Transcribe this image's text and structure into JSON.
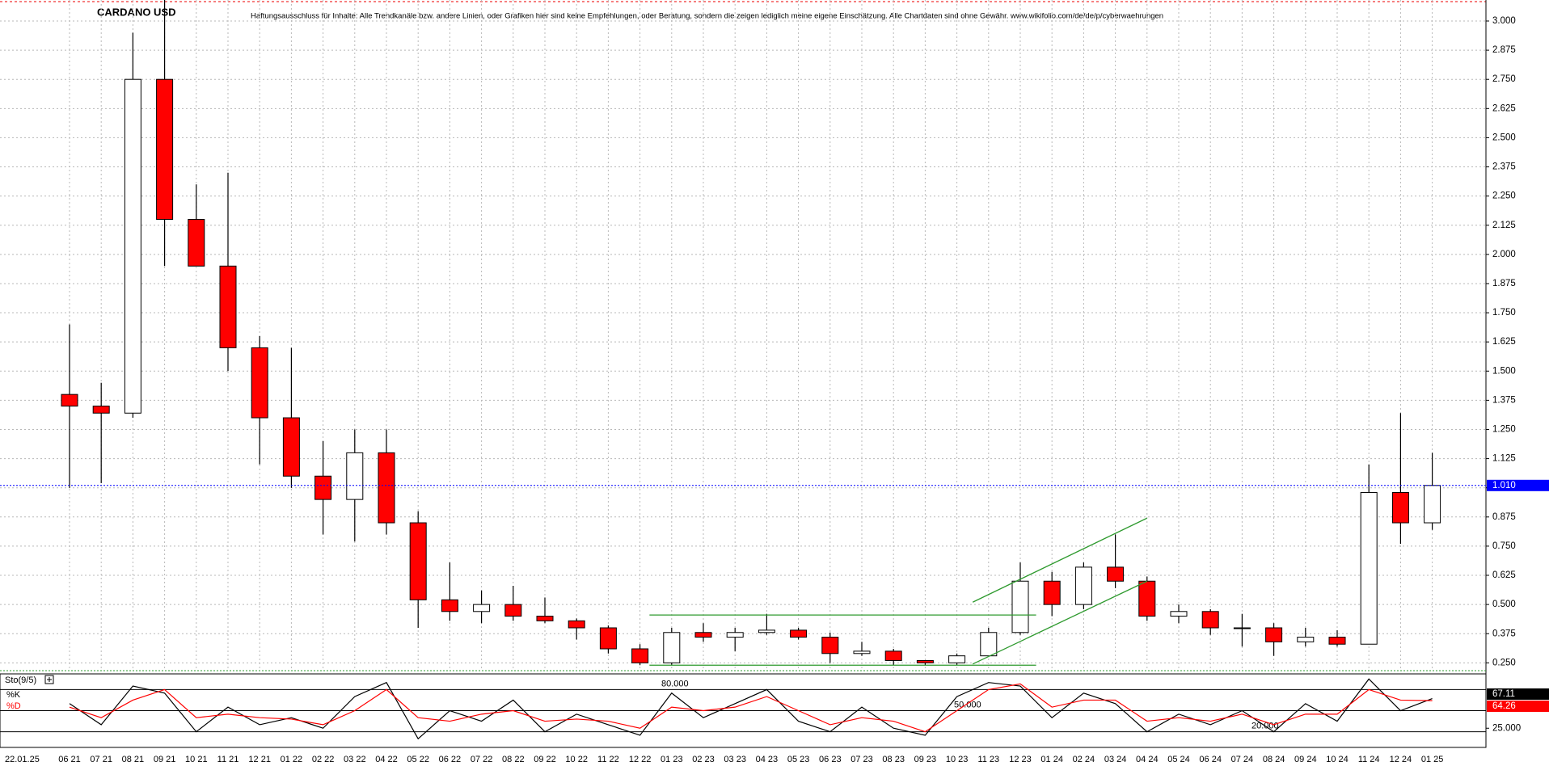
{
  "chart_data": {
    "type": "candlestick",
    "title": "CARDANO USD",
    "subtitle": "Haftungsausschluss für Inhalte: Alle Trendkanäle bzw. andere Linien, oder Grafiken hier sind keine Empfehlungen, oder Beratung, sondern die zeigen lediglich meine eigene Einschätzung. Alle Chartdaten sind ohne Gewähr.  www.wikifolio.com/de/de/p/cyberwaehrungen",
    "cursor_date": "22.01.25",
    "categories": [
      "06 21",
      "07 21",
      "08 21",
      "09 21",
      "10 21",
      "11 21",
      "12 21",
      "01 22",
      "02 22",
      "03 22",
      "04 22",
      "05 22",
      "06 22",
      "07 22",
      "08 22",
      "09 22",
      "10 22",
      "11 22",
      "12 22",
      "01 23",
      "02 23",
      "03 23",
      "04 23",
      "05 23",
      "06 23",
      "07 23",
      "08 23",
      "09 23",
      "10 23",
      "11 23",
      "12 23",
      "01 24",
      "02 24",
      "03 24",
      "04 24",
      "05 24",
      "06 24",
      "07 24",
      "08 24",
      "09 24",
      "10 24",
      "11 24",
      "12 24",
      "01 25"
    ],
    "open": [
      1.4,
      1.35,
      1.32,
      2.75,
      2.15,
      1.95,
      1.6,
      1.3,
      1.05,
      0.95,
      1.15,
      0.85,
      0.52,
      0.47,
      0.5,
      0.45,
      0.43,
      0.4,
      0.31,
      0.25,
      0.38,
      0.36,
      0.38,
      0.39,
      0.36,
      0.29,
      0.3,
      0.26,
      0.25,
      0.28,
      0.38,
      0.6,
      0.5,
      0.66,
      0.6,
      0.45,
      0.47,
      0.4,
      0.4,
      0.34,
      0.36,
      0.33,
      0.98,
      0.85
    ],
    "high": [
      1.7,
      1.45,
      2.95,
      3.1,
      2.3,
      2.35,
      1.65,
      1.6,
      1.2,
      1.25,
      1.25,
      0.9,
      0.68,
      0.56,
      0.58,
      0.53,
      0.44,
      0.41,
      0.33,
      0.4,
      0.42,
      0.4,
      0.46,
      0.4,
      0.38,
      0.34,
      0.31,
      0.26,
      0.29,
      0.4,
      0.68,
      0.64,
      0.68,
      0.8,
      0.62,
      0.5,
      0.48,
      0.46,
      0.42,
      0.4,
      0.39,
      1.1,
      1.32,
      1.15
    ],
    "low": [
      1.0,
      1.02,
      1.3,
      1.95,
      1.95,
      1.5,
      1.1,
      1.0,
      0.8,
      0.77,
      0.8,
      0.4,
      0.43,
      0.42,
      0.43,
      0.42,
      0.35,
      0.29,
      0.24,
      0.24,
      0.34,
      0.3,
      0.37,
      0.35,
      0.25,
      0.28,
      0.24,
      0.24,
      0.24,
      0.28,
      0.37,
      0.45,
      0.48,
      0.57,
      0.43,
      0.42,
      0.37,
      0.32,
      0.28,
      0.32,
      0.32,
      0.33,
      0.76,
      0.82
    ],
    "close": [
      1.35,
      1.32,
      2.75,
      2.15,
      1.95,
      1.6,
      1.3,
      1.05,
      0.95,
      1.15,
      0.85,
      0.52,
      0.47,
      0.5,
      0.45,
      0.43,
      0.4,
      0.31,
      0.25,
      0.38,
      0.36,
      0.38,
      0.39,
      0.36,
      0.29,
      0.3,
      0.26,
      0.25,
      0.28,
      0.38,
      0.6,
      0.5,
      0.66,
      0.6,
      0.45,
      0.47,
      0.4,
      0.4,
      0.34,
      0.36,
      0.33,
      0.98,
      0.85,
      1.01
    ],
    "up_color": "#ffffff",
    "down_color": "#ff0000",
    "ylim": [
      0.22,
      3.09
    ],
    "yticks": [
      {
        "value": 0.25,
        "label": "0.250"
      },
      {
        "value": 0.375,
        "label": "0.375"
      },
      {
        "value": 0.5,
        "label": "0.500"
      },
      {
        "value": 0.625,
        "label": "0.625"
      },
      {
        "value": 0.75,
        "label": "0.750"
      },
      {
        "value": 0.875,
        "label": "0.875"
      },
      {
        "value": 1,
        "label": "1.000"
      },
      {
        "value": 1.125,
        "label": "1.125"
      },
      {
        "value": 1.25,
        "label": "1.250"
      },
      {
        "value": 1.375,
        "label": "1.375"
      },
      {
        "value": 1.5,
        "label": "1.500"
      },
      {
        "value": 1.625,
        "label": "1.625"
      },
      {
        "value": 1.75,
        "label": "1.750"
      },
      {
        "value": 1.875,
        "label": "1.875"
      },
      {
        "value": 2,
        "label": "2.000"
      },
      {
        "value": 2.125,
        "label": "2.125"
      },
      {
        "value": 2.25,
        "label": "2.250"
      },
      {
        "value": 2.375,
        "label": "2.375"
      },
      {
        "value": 2.5,
        "label": "2.500"
      },
      {
        "value": 2.625,
        "label": "2.625"
      },
      {
        "value": 2.75,
        "label": "2.750"
      },
      {
        "value": 2.875,
        "label": "2.875"
      },
      {
        "value": 3,
        "label": "3.000"
      }
    ],
    "grid": true,
    "last_price": {
      "value": 1.01,
      "label": "1.010",
      "color": "#0000ff"
    },
    "trendlines": {
      "color": "#2e9a2e",
      "lines": [
        {
          "x": [
            18.3,
            30.5
          ],
          "y": [
            0.455,
            0.455
          ]
        },
        {
          "x": [
            18.3,
            30.5
          ],
          "y": [
            0.24,
            0.24
          ]
        },
        {
          "x": [
            28.5,
            34
          ],
          "y": [
            0.51,
            0.87
          ]
        },
        {
          "x": [
            28.5,
            34
          ],
          "y": [
            0.245,
            0.6
          ]
        }
      ]
    },
    "stochastic": {
      "name": "Sto(9/5)",
      "ylim": [
        0,
        100
      ],
      "yticks": [
        {
          "value": 25,
          "label": "25.000"
        }
      ],
      "levels": [
        {
          "value": 80,
          "label": "80.000"
        },
        {
          "value": 50,
          "label": "50.000"
        },
        {
          "value": 20,
          "label": "20.000"
        }
      ],
      "series": [
        {
          "name": "%K",
          "color": "#000000",
          "label": {
            "value": 67.11,
            "label": "67.11"
          },
          "values": [
            60,
            30,
            85,
            75,
            20,
            55,
            30,
            40,
            25,
            70,
            90,
            10,
            50,
            35,
            65,
            20,
            45,
            30,
            15,
            75,
            40,
            60,
            80,
            35,
            20,
            55,
            25,
            15,
            70,
            90,
            85,
            40,
            75,
            60,
            20,
            45,
            30,
            50,
            20,
            60,
            35,
            95,
            50,
            67.11
          ]
        },
        {
          "name": "%D",
          "color": "#ff0000",
          "label": {
            "value": 64.26,
            "label": "64.26"
          },
          "values": [
            55,
            40,
            65,
            80,
            40,
            45,
            40,
            38,
            30,
            50,
            80,
            40,
            35,
            45,
            50,
            35,
            38,
            35,
            25,
            55,
            50,
            55,
            70,
            50,
            30,
            40,
            35,
            20,
            50,
            80,
            88,
            55,
            65,
            65,
            35,
            40,
            35,
            45,
            30,
            45,
            45,
            80,
            65,
            64.26
          ]
        }
      ]
    }
  }
}
